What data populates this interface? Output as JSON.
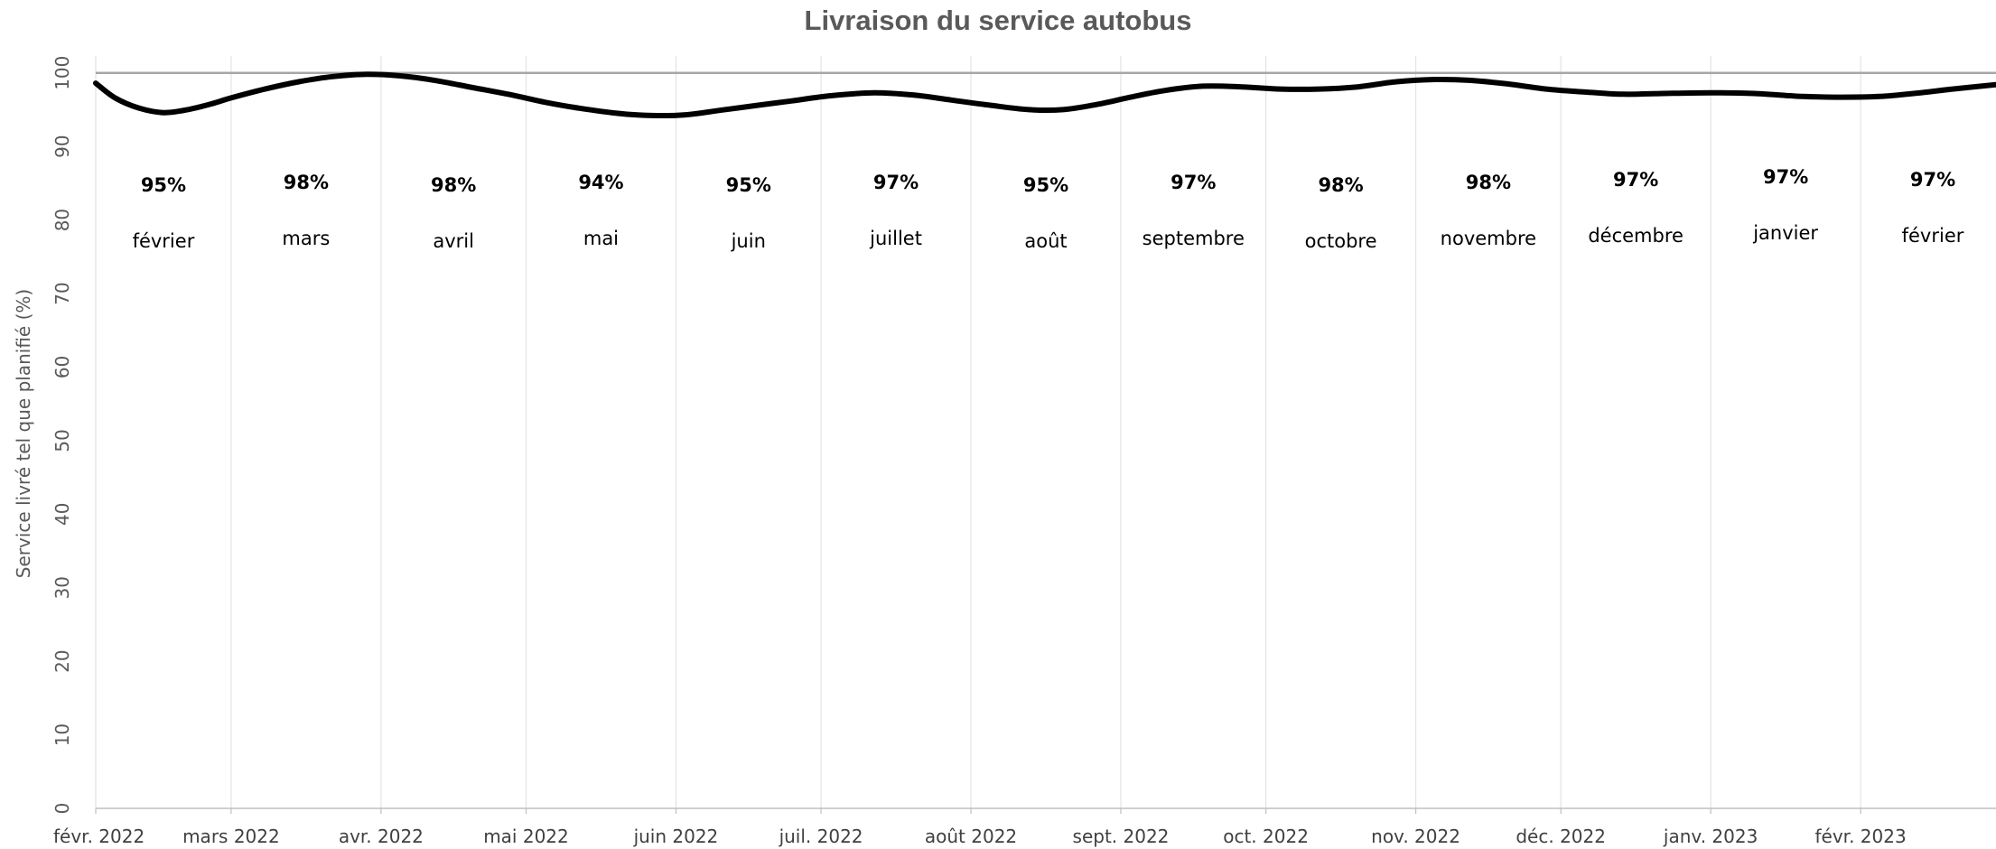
{
  "chart_data": {
    "type": "line",
    "title": "Livraison du service autobus",
    "ylabel": "Service livré tel que planifié (%)",
    "xlabel": "",
    "ylim": [
      0,
      105
    ],
    "yticks": [
      0,
      10,
      20,
      30,
      40,
      50,
      60,
      70,
      80,
      90,
      100
    ],
    "grid": "vertical",
    "legend": "none",
    "reference_line": {
      "y": 100,
      "color": "#a6a6a6"
    },
    "line_color": "#000000",
    "x_ticks": [
      {
        "date": "2022-02-01",
        "label": "févr. 2022"
      },
      {
        "date": "2022-03-01",
        "label": "mars 2022"
      },
      {
        "date": "2022-04-01",
        "label": "avr. 2022"
      },
      {
        "date": "2022-05-01",
        "label": "mai 2022"
      },
      {
        "date": "2022-06-01",
        "label": "juin 2022"
      },
      {
        "date": "2022-07-01",
        "label": "juil. 2022"
      },
      {
        "date": "2022-08-01",
        "label": "août 2022"
      },
      {
        "date": "2022-09-01",
        "label": "sept. 2022"
      },
      {
        "date": "2022-10-01",
        "label": "oct. 2022"
      },
      {
        "date": "2022-11-01",
        "label": "nov. 2022"
      },
      {
        "date": "2022-12-01",
        "label": "déc. 2022"
      },
      {
        "date": "2023-01-01",
        "label": "janv. 2023"
      },
      {
        "date": "2023-02-01",
        "label": "févr. 2023"
      }
    ],
    "x_range": [
      "2022-02-01",
      "2023-03-01"
    ],
    "series": [
      {
        "points": [
          [
            "2022-02-01",
            98.6
          ],
          [
            "2022-02-05",
            96.6
          ],
          [
            "2022-02-10",
            95.2
          ],
          [
            "2022-02-15",
            94.6
          ],
          [
            "2022-02-20",
            95.0
          ],
          [
            "2022-02-25",
            95.8
          ],
          [
            "2022-03-01",
            96.6
          ],
          [
            "2022-03-08",
            97.8
          ],
          [
            "2022-03-15",
            98.8
          ],
          [
            "2022-03-22",
            99.5
          ],
          [
            "2022-03-29",
            99.8
          ],
          [
            "2022-04-05",
            99.6
          ],
          [
            "2022-04-12",
            99.0
          ],
          [
            "2022-04-20",
            98.0
          ],
          [
            "2022-04-28",
            97.0
          ],
          [
            "2022-05-05",
            96.0
          ],
          [
            "2022-05-12",
            95.2
          ],
          [
            "2022-05-20",
            94.5
          ],
          [
            "2022-05-27",
            94.2
          ],
          [
            "2022-06-03",
            94.3
          ],
          [
            "2022-06-10",
            94.9
          ],
          [
            "2022-06-18",
            95.6
          ],
          [
            "2022-06-25",
            96.2
          ],
          [
            "2022-07-03",
            96.9
          ],
          [
            "2022-07-12",
            97.3
          ],
          [
            "2022-07-20",
            97.0
          ],
          [
            "2022-07-28",
            96.3
          ],
          [
            "2022-08-05",
            95.6
          ],
          [
            "2022-08-13",
            95.0
          ],
          [
            "2022-08-20",
            95.0
          ],
          [
            "2022-08-27",
            95.7
          ],
          [
            "2022-09-03",
            96.7
          ],
          [
            "2022-09-10",
            97.6
          ],
          [
            "2022-09-18",
            98.2
          ],
          [
            "2022-09-26",
            98.1
          ],
          [
            "2022-10-04",
            97.8
          ],
          [
            "2022-10-12",
            97.8
          ],
          [
            "2022-10-20",
            98.1
          ],
          [
            "2022-10-28",
            98.8
          ],
          [
            "2022-11-05",
            99.1
          ],
          [
            "2022-11-12",
            99.0
          ],
          [
            "2022-11-20",
            98.5
          ],
          [
            "2022-11-28",
            97.8
          ],
          [
            "2022-12-06",
            97.4
          ],
          [
            "2022-12-14",
            97.1
          ],
          [
            "2022-12-22",
            97.2
          ],
          [
            "2023-01-01",
            97.3
          ],
          [
            "2023-01-10",
            97.2
          ],
          [
            "2023-01-20",
            96.8
          ],
          [
            "2023-01-28",
            96.7
          ],
          [
            "2023-02-05",
            96.8
          ],
          [
            "2023-02-12",
            97.2
          ],
          [
            "2023-02-20",
            97.8
          ],
          [
            "2023-03-01",
            98.4
          ]
        ]
      }
    ],
    "annotations": [
      {
        "pct": "95%",
        "month": "février"
      },
      {
        "pct": "98%",
        "month": "mars"
      },
      {
        "pct": "98%",
        "month": "avril"
      },
      {
        "pct": "94%",
        "month": "mai"
      },
      {
        "pct": "95%",
        "month": "juin"
      },
      {
        "pct": "97%",
        "month": "juillet"
      },
      {
        "pct": "95%",
        "month": "août"
      },
      {
        "pct": "97%",
        "month": "septembre"
      },
      {
        "pct": "98%",
        "month": "octobre"
      },
      {
        "pct": "98%",
        "month": "novembre"
      },
      {
        "pct": "97%",
        "month": "décembre"
      },
      {
        "pct": "97%",
        "month": "janvier"
      },
      {
        "pct": "97%",
        "month": "février"
      }
    ]
  }
}
